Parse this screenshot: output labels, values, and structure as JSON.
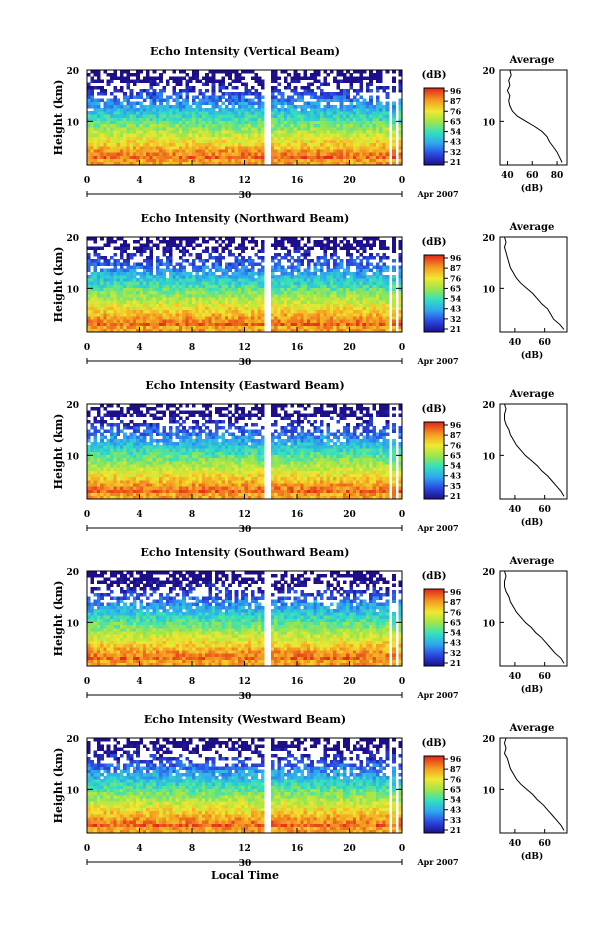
{
  "figure": {
    "footer_xlabel": "Local Time",
    "date_label": "Apr 2007"
  },
  "chart_data": [
    {
      "type": "heatmap",
      "title": "Echo Intensity (Vertical Beam)",
      "ylabel": "Height (km)",
      "ylim": [
        1.5,
        20
      ],
      "y_ticks": [
        10,
        20
      ],
      "xlim": [
        0,
        24
      ],
      "x_ticks": [
        "0",
        "4",
        "8",
        "12",
        "16",
        "20",
        "0"
      ],
      "day_label": "30",
      "colorbar": {
        "unit": "(dB)",
        "ticks": [
          "96",
          "87",
          "76",
          "65",
          "54",
          "43",
          "32",
          "21"
        ]
      },
      "profile": {
        "title": "Average",
        "xlabel": "(dB)",
        "xlim": [
          34,
          88
        ],
        "x_ticks": [
          "40",
          "60",
          "80"
        ],
        "y_ticks": [
          "10",
          "20"
        ],
        "points": [
          [
            84,
            2
          ],
          [
            82,
            3
          ],
          [
            80,
            4
          ],
          [
            77,
            5
          ],
          [
            74,
            6
          ],
          [
            72,
            7
          ],
          [
            68,
            8
          ],
          [
            62,
            9
          ],
          [
            55,
            10
          ],
          [
            48,
            11
          ],
          [
            44,
            12
          ],
          [
            42,
            13
          ],
          [
            41,
            14
          ],
          [
            42,
            15
          ],
          [
            40,
            16
          ],
          [
            42,
            17
          ],
          [
            41,
            18
          ],
          [
            43,
            19
          ],
          [
            42,
            20
          ]
        ]
      }
    },
    {
      "type": "heatmap",
      "title": "Echo Intensity (Northward Beam)",
      "ylabel": "Height (km)",
      "ylim": [
        1.5,
        20
      ],
      "y_ticks": [
        10,
        20
      ],
      "xlim": [
        0,
        24
      ],
      "x_ticks": [
        "0",
        "4",
        "8",
        "12",
        "16",
        "20",
        "0"
      ],
      "day_label": "30",
      "colorbar": {
        "unit": "(dB)",
        "ticks": [
          "96",
          "87",
          "76",
          "65",
          "54",
          "43",
          "32",
          "21"
        ]
      },
      "profile": {
        "title": "Average",
        "xlabel": "(dB)",
        "xlim": [
          30,
          75
        ],
        "x_ticks": [
          "40",
          "60"
        ],
        "y_ticks": [
          "10",
          "20"
        ],
        "points": [
          [
            73,
            2
          ],
          [
            70,
            3
          ],
          [
            66,
            4
          ],
          [
            64,
            5
          ],
          [
            62,
            6
          ],
          [
            58,
            7
          ],
          [
            55,
            8
          ],
          [
            52,
            9
          ],
          [
            48,
            10
          ],
          [
            44,
            11
          ],
          [
            41,
            12
          ],
          [
            39,
            13
          ],
          [
            37,
            14
          ],
          [
            36,
            15
          ],
          [
            35,
            16
          ],
          [
            34,
            17
          ],
          [
            33,
            18
          ],
          [
            34,
            19
          ],
          [
            33,
            20
          ]
        ]
      }
    },
    {
      "type": "heatmap",
      "title": "Echo Intensity (Eastward Beam)",
      "ylabel": "Height (km)",
      "ylim": [
        1.5,
        20
      ],
      "y_ticks": [
        10,
        20
      ],
      "xlim": [
        0,
        24
      ],
      "x_ticks": [
        "0",
        "4",
        "8",
        "12",
        "16",
        "20",
        "0"
      ],
      "day_label": "30",
      "colorbar": {
        "unit": "(dB)",
        "ticks": [
          "96",
          "87",
          "76",
          "65",
          "54",
          "43",
          "35",
          "21"
        ]
      },
      "profile": {
        "title": "Average",
        "xlabel": "(dB)",
        "xlim": [
          30,
          75
        ],
        "x_ticks": [
          "40",
          "60"
        ],
        "y_ticks": [
          "10",
          "20"
        ],
        "points": [
          [
            73,
            2
          ],
          [
            71,
            3
          ],
          [
            68,
            4
          ],
          [
            65,
            5
          ],
          [
            62,
            6
          ],
          [
            58,
            7
          ],
          [
            55,
            8
          ],
          [
            51,
            9
          ],
          [
            47,
            10
          ],
          [
            44,
            11
          ],
          [
            41,
            12
          ],
          [
            39,
            13
          ],
          [
            37,
            14
          ],
          [
            36,
            15
          ],
          [
            34,
            16
          ],
          [
            33,
            17
          ],
          [
            33,
            18
          ],
          [
            34,
            19
          ],
          [
            33,
            20
          ]
        ]
      }
    },
    {
      "type": "heatmap",
      "title": "Echo Intensity (Southward Beam)",
      "ylabel": "Height (km)",
      "ylim": [
        1.5,
        20
      ],
      "y_ticks": [
        10,
        20
      ],
      "xlim": [
        0,
        24
      ],
      "x_ticks": [
        "0",
        "4",
        "8",
        "12",
        "16",
        "20",
        "0"
      ],
      "day_label": "30",
      "colorbar": {
        "unit": "(dB)",
        "ticks": [
          "96",
          "87",
          "76",
          "65",
          "54",
          "43",
          "32",
          "21"
        ]
      },
      "profile": {
        "title": "Average",
        "xlabel": "(dB)",
        "xlim": [
          30,
          75
        ],
        "x_ticks": [
          "40",
          "60"
        ],
        "y_ticks": [
          "10",
          "20"
        ],
        "points": [
          [
            73,
            2
          ],
          [
            71,
            3
          ],
          [
            67,
            4
          ],
          [
            64,
            5
          ],
          [
            61,
            6
          ],
          [
            58,
            7
          ],
          [
            54,
            8
          ],
          [
            51,
            9
          ],
          [
            47,
            10
          ],
          [
            44,
            11
          ],
          [
            41,
            12
          ],
          [
            39,
            13
          ],
          [
            37,
            14
          ],
          [
            36,
            15
          ],
          [
            34,
            16
          ],
          [
            33,
            17
          ],
          [
            33,
            18
          ],
          [
            34,
            19
          ],
          [
            33,
            20
          ]
        ]
      }
    },
    {
      "type": "heatmap",
      "title": "Echo Intensity (Westward Beam)",
      "ylabel": "Height (km)",
      "ylim": [
        1.5,
        20
      ],
      "y_ticks": [
        10,
        20
      ],
      "xlim": [
        0,
        24
      ],
      "x_ticks": [
        "0",
        "4",
        "8",
        "12",
        "16",
        "20",
        "0"
      ],
      "day_label": "30",
      "colorbar": {
        "unit": "(dB)",
        "ticks": [
          "96",
          "87",
          "76",
          "65",
          "54",
          "43",
          "33",
          "21"
        ]
      },
      "profile": {
        "title": "Average",
        "xlabel": "(dB)",
        "xlim": [
          30,
          75
        ],
        "x_ticks": [
          "40",
          "60"
        ],
        "y_ticks": [
          "10",
          "20"
        ],
        "points": [
          [
            73,
            2
          ],
          [
            71,
            3
          ],
          [
            68,
            4
          ],
          [
            65,
            5
          ],
          [
            62,
            6
          ],
          [
            59,
            7
          ],
          [
            55,
            8
          ],
          [
            52,
            9
          ],
          [
            48,
            10
          ],
          [
            44,
            11
          ],
          [
            41,
            12
          ],
          [
            39,
            13
          ],
          [
            37,
            14
          ],
          [
            36,
            15
          ],
          [
            35,
            16
          ],
          [
            33,
            17
          ],
          [
            34,
            18
          ],
          [
            33,
            19
          ],
          [
            34,
            20
          ]
        ]
      }
    }
  ]
}
